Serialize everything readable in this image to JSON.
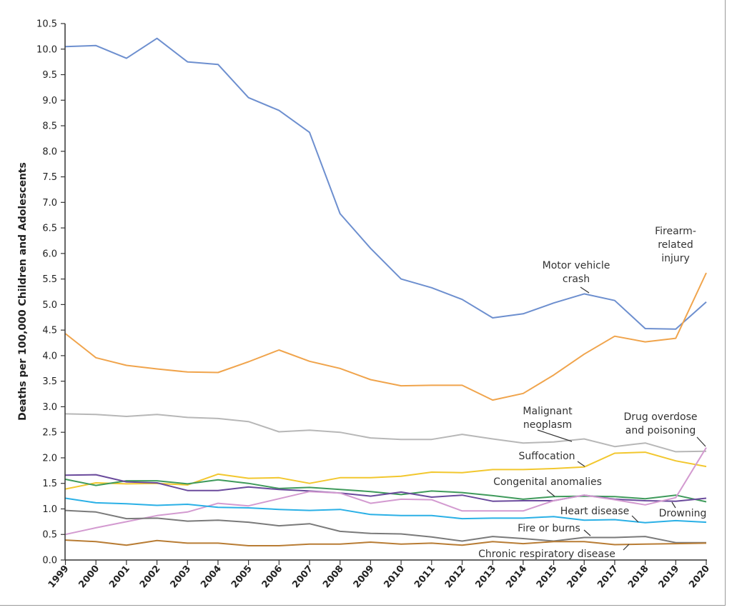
{
  "chart_data": {
    "type": "line",
    "title": "",
    "xlabel": "",
    "ylabel": "Deaths per 100,000 Children and Adolescents",
    "ylim": [
      0,
      10.5
    ],
    "yticks": [
      "0.0",
      "0.5",
      "1.0",
      "1.5",
      "2.0",
      "2.5",
      "3.0",
      "3.5",
      "4.0",
      "4.5",
      "5.0",
      "5.5",
      "6.0",
      "6.5",
      "7.0",
      "7.5",
      "8.0",
      "8.5",
      "9.0",
      "9.5",
      "10.0",
      "10.5"
    ],
    "x": [
      "1999",
      "2000",
      "2001",
      "2002",
      "2003",
      "2004",
      "2005",
      "2006",
      "2007",
      "2008",
      "2009",
      "2010",
      "2011",
      "2012",
      "2013",
      "2014",
      "2015",
      "2016",
      "2017",
      "2018",
      "2019",
      "2020"
    ],
    "grid": false,
    "series": [
      {
        "name": "Motor vehicle crash",
        "color": "#6d8fcf",
        "values": [
          10.05,
          10.07,
          9.82,
          10.21,
          9.75,
          9.7,
          9.05,
          8.8,
          8.37,
          6.78,
          6.1,
          5.5,
          5.33,
          5.1,
          4.74,
          4.82,
          5.03,
          5.21,
          5.08,
          4.53,
          4.52,
          5.05
        ]
      },
      {
        "name": "Firearm-related injury",
        "color": "#f0a44c",
        "values": [
          4.43,
          3.96,
          3.81,
          3.74,
          3.68,
          3.67,
          3.88,
          4.11,
          3.89,
          3.75,
          3.53,
          3.41,
          3.42,
          3.42,
          3.13,
          3.26,
          3.62,
          4.03,
          4.38,
          4.27,
          4.34,
          5.62
        ]
      },
      {
        "name": "Malignant neoplasm",
        "color": "#b7b7b7",
        "values": [
          2.86,
          2.85,
          2.81,
          2.85,
          2.79,
          2.77,
          2.71,
          2.51,
          2.54,
          2.5,
          2.39,
          2.36,
          2.36,
          2.46,
          2.37,
          2.29,
          2.31,
          2.37,
          2.22,
          2.29,
          2.12,
          2.13
        ]
      },
      {
        "name": "Suffocation",
        "color": "#f2c72e",
        "values": [
          1.39,
          1.51,
          1.49,
          1.5,
          1.47,
          1.68,
          1.6,
          1.61,
          1.5,
          1.61,
          1.61,
          1.64,
          1.72,
          1.71,
          1.77,
          1.77,
          1.79,
          1.82,
          2.09,
          2.11,
          1.94,
          1.83
        ]
      },
      {
        "name": "Congenital anomalies",
        "color": "#3f9a5b",
        "values": [
          1.58,
          1.46,
          1.55,
          1.55,
          1.49,
          1.57,
          1.5,
          1.4,
          1.42,
          1.38,
          1.34,
          1.28,
          1.35,
          1.32,
          1.26,
          1.19,
          1.24,
          1.25,
          1.24,
          1.2,
          1.27,
          1.14
        ]
      },
      {
        "name": "Drowning",
        "color": "#6a4a9c",
        "values": [
          1.66,
          1.67,
          1.53,
          1.51,
          1.36,
          1.36,
          1.43,
          1.38,
          1.35,
          1.31,
          1.25,
          1.33,
          1.23,
          1.27,
          1.15,
          1.16,
          1.16,
          1.27,
          1.19,
          1.16,
          1.15,
          1.21
        ]
      },
      {
        "name": "Drug overdose and poisoning",
        "color": "#d39ad0",
        "values": [
          0.5,
          0.63,
          0.75,
          0.87,
          0.94,
          1.11,
          1.06,
          1.2,
          1.34,
          1.31,
          1.11,
          1.19,
          1.18,
          0.96,
          0.96,
          0.96,
          1.16,
          1.27,
          1.18,
          1.08,
          1.22,
          2.2
        ]
      },
      {
        "name": "Heart disease",
        "color": "#2ab0e6",
        "values": [
          1.21,
          1.12,
          1.1,
          1.07,
          1.09,
          1.03,
          1.02,
          0.99,
          0.97,
          0.99,
          0.89,
          0.87,
          0.87,
          0.81,
          0.82,
          0.82,
          0.85,
          0.78,
          0.79,
          0.73,
          0.77,
          0.74
        ]
      },
      {
        "name": "Fire or burns",
        "color": "#7a7a7a",
        "values": [
          0.97,
          0.94,
          0.81,
          0.82,
          0.76,
          0.78,
          0.74,
          0.67,
          0.71,
          0.56,
          0.52,
          0.51,
          0.45,
          0.37,
          0.46,
          0.42,
          0.37,
          0.44,
          0.44,
          0.46,
          0.34,
          0.34
        ]
      },
      {
        "name": "Chronic respiratory disease",
        "color": "#b87c34",
        "values": [
          0.39,
          0.36,
          0.29,
          0.38,
          0.33,
          0.33,
          0.28,
          0.28,
          0.31,
          0.31,
          0.35,
          0.31,
          0.33,
          0.29,
          0.36,
          0.32,
          0.36,
          0.36,
          0.3,
          0.31,
          0.32,
          0.33
        ]
      }
    ],
    "annotations": {
      "motor": [
        "Motor vehicle",
        "crash"
      ],
      "firearm": [
        "Firearm-",
        "related",
        "injury"
      ],
      "malignant": [
        "Malignant",
        "neoplasm"
      ],
      "drug": [
        "Drug overdose",
        "and poisoning"
      ],
      "suffocation": "Suffocation",
      "congenital": "Congenital anomalies",
      "heart": "Heart disease",
      "drowning": "Drowning",
      "fire": "Fire or burns",
      "chronic": "Chronic respiratory disease"
    }
  }
}
